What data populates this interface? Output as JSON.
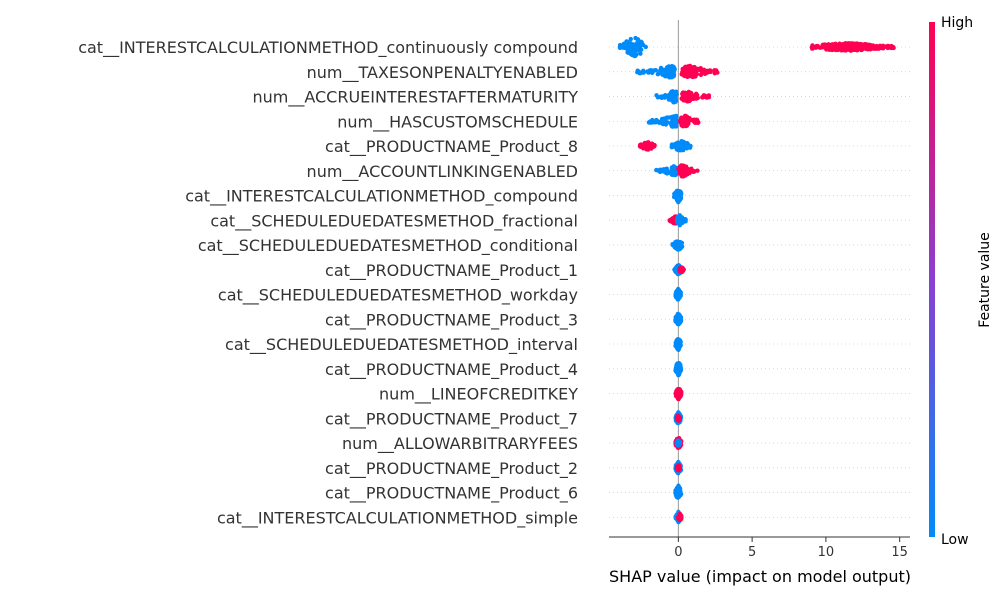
{
  "chart_data": {
    "type": "scatter",
    "subtype": "beeswarm",
    "title": "",
    "xlabel": "SHAP value (impact on model output)",
    "ylabel": "",
    "xlim": [
      -4.7,
      15.7
    ],
    "xticks": [
      0,
      5,
      10,
      15
    ],
    "grid": "horizontal dotted guide per feature",
    "colors": {
      "low": "#008bfb",
      "high": "#ff0052",
      "zero_line": "#999999"
    },
    "colorbar": {
      "label": "Feature value",
      "high_label": "High",
      "low_label": "Low",
      "placement": "right"
    },
    "features": [
      {
        "name": "cat__INTERESTCALCULATIONMETHOD_continuously compound",
        "clusters": [
          {
            "value": "low",
            "x": [
              -4.0,
              -2.2
            ],
            "center": -3.0,
            "spread": 10
          },
          {
            "value": "high",
            "x": [
              9.0,
              14.8
            ],
            "center": 11.5,
            "spread": 4
          }
        ]
      },
      {
        "name": "num__TAXESONPENALTYENABLED",
        "clusters": [
          {
            "value": "low",
            "x": [
              -2.8,
              -0.2
            ],
            "center": -0.5,
            "spread": 6
          },
          {
            "value": "high",
            "x": [
              0.2,
              2.7
            ],
            "center": 0.8,
            "spread": 6
          }
        ]
      },
      {
        "name": "num__ACCRUEINTERESTAFTERMATURITY",
        "clusters": [
          {
            "value": "low",
            "x": [
              -1.5,
              -0.1
            ],
            "center": -0.3,
            "spread": 6
          },
          {
            "value": "high",
            "x": [
              0.2,
              2.1
            ],
            "center": 0.6,
            "spread": 5
          }
        ]
      },
      {
        "name": "num__HASCUSTOMSCHEDULE",
        "clusters": [
          {
            "value": "low",
            "x": [
              -2.0,
              -0.1
            ],
            "center": -0.3,
            "spread": 6
          },
          {
            "value": "high",
            "x": [
              0.1,
              1.4
            ],
            "center": 0.4,
            "spread": 6
          }
        ]
      },
      {
        "name": "cat__PRODUCTNAME_Product_8",
        "clusters": [
          {
            "value": "high",
            "x": [
              -2.6,
              -1.6
            ],
            "center": -2.1,
            "spread": 4
          },
          {
            "value": "low",
            "x": [
              -0.5,
              0.9
            ],
            "center": 0.2,
            "spread": 5
          }
        ]
      },
      {
        "name": "num__ACCOUNTLINKINGENABLED",
        "clusters": [
          {
            "value": "low",
            "x": [
              -1.5,
              -0.1
            ],
            "center": -0.3,
            "spread": 5
          },
          {
            "value": "high",
            "x": [
              0.0,
              1.3
            ],
            "center": 0.3,
            "spread": 6
          }
        ]
      },
      {
        "name": "cat__INTERESTCALCULATIONMETHOD_compound",
        "clusters": [
          {
            "value": "low",
            "x": [
              -0.3,
              0.2
            ],
            "center": 0.0,
            "spread": 7
          }
        ]
      },
      {
        "name": "cat__SCHEDULEDUEDATESMETHOD_fractional",
        "clusters": [
          {
            "value": "high",
            "x": [
              -0.6,
              0.0
            ],
            "center": -0.2,
            "spread": 4
          },
          {
            "value": "low",
            "x": [
              -0.1,
              0.5
            ],
            "center": 0.1,
            "spread": 5
          }
        ]
      },
      {
        "name": "cat__SCHEDULEDUEDATESMETHOD_conditional",
        "clusters": [
          {
            "value": "low",
            "x": [
              -0.4,
              0.3
            ],
            "center": 0.0,
            "spread": 5
          }
        ]
      },
      {
        "name": "cat__PRODUCTNAME_Product_1",
        "clusters": [
          {
            "value": "low",
            "x": [
              -0.3,
              0.2
            ],
            "center": 0.0,
            "spread": 5
          },
          {
            "value": "high",
            "x": [
              0.1,
              0.4
            ],
            "center": 0.2,
            "spread": 3
          }
        ]
      },
      {
        "name": "cat__SCHEDULEDUEDATESMETHOD_workday",
        "clusters": [
          {
            "value": "low",
            "x": [
              -0.2,
              0.2
            ],
            "center": 0.0,
            "spread": 6
          }
        ]
      },
      {
        "name": "cat__PRODUCTNAME_Product_3",
        "clusters": [
          {
            "value": "low",
            "x": [
              -0.2,
              0.2
            ],
            "center": 0.0,
            "spread": 6
          }
        ]
      },
      {
        "name": "cat__SCHEDULEDUEDATESMETHOD_interval",
        "clusters": [
          {
            "value": "low",
            "x": [
              -0.2,
              0.2
            ],
            "center": 0.0,
            "spread": 6
          }
        ]
      },
      {
        "name": "cat__PRODUCTNAME_Product_4",
        "clusters": [
          {
            "value": "low",
            "x": [
              -0.2,
              0.2
            ],
            "center": 0.0,
            "spread": 7
          }
        ]
      },
      {
        "name": "num__LINEOFCREDITKEY",
        "clusters": [
          {
            "value": "high",
            "x": [
              -0.2,
              0.2
            ],
            "center": 0.0,
            "spread": 6
          }
        ]
      },
      {
        "name": "cat__PRODUCTNAME_Product_7",
        "clusters": [
          {
            "value": "low",
            "x": [
              -0.2,
              0.2
            ],
            "center": 0.0,
            "spread": 6
          },
          {
            "value": "high",
            "x": [
              -0.1,
              0.1
            ],
            "center": 0.0,
            "spread": 3
          }
        ]
      },
      {
        "name": "num__ALLOWARBITRARYFEES",
        "clusters": [
          {
            "value": "high",
            "x": [
              -0.2,
              0.2
            ],
            "center": 0.0,
            "spread": 6
          },
          {
            "value": "low",
            "x": [
              -0.1,
              0.1
            ],
            "center": 0.0,
            "spread": 3
          }
        ]
      },
      {
        "name": "cat__PRODUCTNAME_Product_2",
        "clusters": [
          {
            "value": "low",
            "x": [
              -0.2,
              0.2
            ],
            "center": 0.0,
            "spread": 6
          },
          {
            "value": "high",
            "x": [
              -0.1,
              0.1
            ],
            "center": 0.0,
            "spread": 3
          }
        ]
      },
      {
        "name": "cat__PRODUCTNAME_Product_6",
        "clusters": [
          {
            "value": "low",
            "x": [
              -0.2,
              0.2
            ],
            "center": 0.0,
            "spread": 7
          }
        ]
      },
      {
        "name": "cat__INTERESTCALCULATIONMETHOD_simple",
        "clusters": [
          {
            "value": "low",
            "x": [
              -0.2,
              0.1
            ],
            "center": 0.0,
            "spread": 6
          },
          {
            "value": "high",
            "x": [
              0.0,
              0.2
            ],
            "center": 0.1,
            "spread": 4
          }
        ]
      }
    ]
  }
}
